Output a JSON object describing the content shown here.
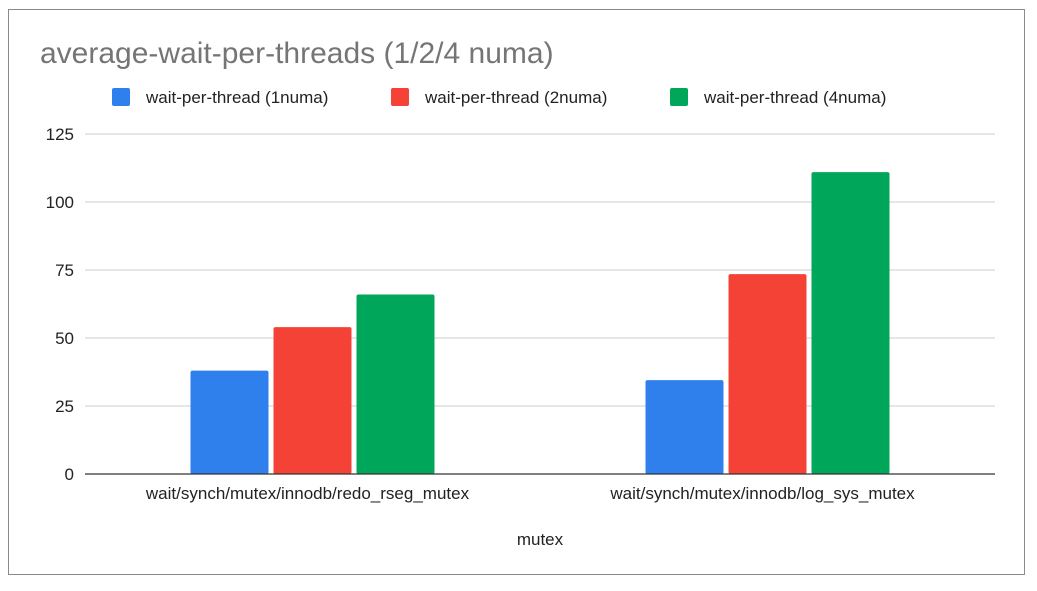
{
  "chart_data": {
    "type": "bar",
    "title": "average-wait-per-threads (1/2/4 numa)",
    "xlabel": "mutex",
    "ylabel": "",
    "categories": [
      "wait/synch/mutex/innodb/redo_rseg_mutex",
      "wait/synch/mutex/innodb/log_sys_mutex"
    ],
    "series": [
      {
        "name": "wait-per-thread (1numa)",
        "color": "#2f80ed",
        "values": [
          38,
          34.5
        ]
      },
      {
        "name": "wait-per-thread (2numa)",
        "color": "#f44336",
        "values": [
          54,
          73.5
        ]
      },
      {
        "name": "wait-per-thread (4numa)",
        "color": "#00a65a",
        "values": [
          66,
          111
        ]
      }
    ],
    "ylim": [
      0,
      125
    ],
    "yticks": [
      0,
      25,
      50,
      75,
      100,
      125
    ],
    "grid": true,
    "legend_position": "top"
  },
  "colors": {
    "gridline": "#cccccc",
    "axis": "#333333",
    "frame": "#8a8a8a"
  }
}
